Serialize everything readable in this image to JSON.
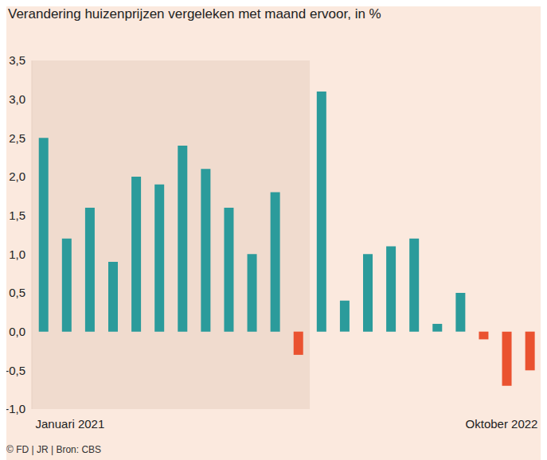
{
  "chart_data": {
    "type": "bar",
    "title": "Verandering huizenprijzen vergeleken met maand ervoor, in %",
    "source": "© FD | JR | Bron: CBS",
    "categories": [
      "Januari 2021",
      null,
      null,
      null,
      null,
      null,
      null,
      null,
      null,
      null,
      null,
      null,
      null,
      null,
      null,
      null,
      null,
      null,
      null,
      null,
      null,
      "Oktober 2022"
    ],
    "values": [
      2.5,
      1.2,
      1.6,
      0.9,
      2.0,
      1.9,
      2.4,
      2.1,
      1.6,
      1.0,
      1.8,
      -0.3,
      3.1,
      0.4,
      1.0,
      1.1,
      1.2,
      0.1,
      0.5,
      -0.1,
      -0.7,
      -0.5
    ],
    "colors": [
      "#2b9b9b",
      "#2b9b9b",
      "#2b9b9b",
      "#2b9b9b",
      "#2b9b9b",
      "#2b9b9b",
      "#2b9b9b",
      "#2b9b9b",
      "#2b9b9b",
      "#2b9b9b",
      "#2b9b9b",
      "#ea5230",
      "#2b9b9b",
      "#2b9b9b",
      "#2b9b9b",
      "#2b9b9b",
      "#2b9b9b",
      "#2b9b9b",
      "#2b9b9b",
      "#ea5230",
      "#ea5230",
      "#ea5230"
    ],
    "ylim": [
      -1.0,
      3.5
    ],
    "yticks": [
      {
        "value": 3.5,
        "label": "3,5"
      },
      {
        "value": 3.0,
        "label": "3,0"
      },
      {
        "value": 2.5,
        "label": "2,5"
      },
      {
        "value": 2.0,
        "label": "2,0"
      },
      {
        "value": 1.5,
        "label": "1,5"
      },
      {
        "value": 1.0,
        "label": "1,0"
      },
      {
        "value": 0.5,
        "label": "0,5"
      },
      {
        "value": 0.0,
        "label": "0,0"
      },
      {
        "value": -0.5,
        "label": "-0,5"
      },
      {
        "value": -1.0,
        "label": "-1,0"
      }
    ],
    "grid": false
  }
}
